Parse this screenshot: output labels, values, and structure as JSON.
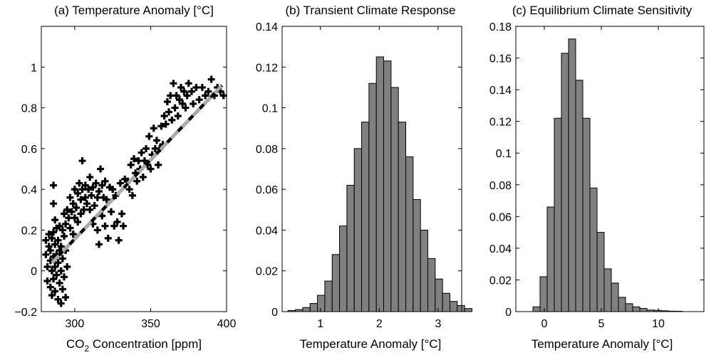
{
  "chart_data": [
    {
      "type": "scatter",
      "title": "(a) Temperature Anomaly [°C]",
      "xlabel_pre": "CO",
      "xlabel_sub": "2",
      "xlabel_post": " Concentration [ppm]",
      "xlim": [
        278,
        400
      ],
      "ylim": [
        -0.2,
        1.2
      ],
      "xticks": [
        300,
        350,
        400
      ],
      "yticks": [
        -0.2,
        0,
        0.2,
        0.4,
        0.6,
        0.8,
        1
      ],
      "ytick_labels": [
        "−0.2",
        "0",
        "0.2",
        "0.4",
        "0.6",
        "0.8",
        "1"
      ],
      "marker": "plus",
      "fit_line": {
        "x": [
          285,
          397
        ],
        "y": [
          0.04,
          0.91
        ],
        "colors": [
          "#000000",
          "#aaaaaa"
        ]
      },
      "points": [
        [
          281,
          0.15
        ],
        [
          281,
          0.08
        ],
        [
          282,
          0.02
        ],
        [
          282,
          -0.05
        ],
        [
          283,
          0.12
        ],
        [
          283,
          0.18
        ],
        [
          284,
          0.05
        ],
        [
          284,
          -0.08
        ],
        [
          284,
          0.1
        ],
        [
          285,
          0.16
        ],
        [
          285,
          -0.12
        ],
        [
          285,
          0.0
        ],
        [
          286,
          0.07
        ],
        [
          286,
          0.19
        ],
        [
          286,
          -0.04
        ],
        [
          287,
          0.13
        ],
        [
          287,
          0.02
        ],
        [
          287,
          -0.1
        ],
        [
          288,
          0.08
        ],
        [
          288,
          0.21
        ],
        [
          288,
          -0.02
        ],
        [
          289,
          0.04
        ],
        [
          289,
          -0.14
        ],
        [
          289,
          0.15
        ],
        [
          290,
          0.1
        ],
        [
          290,
          -0.06
        ],
        [
          290,
          0.22
        ],
        [
          291,
          0.0
        ],
        [
          291,
          -0.16
        ],
        [
          291,
          0.12
        ],
        [
          292,
          0.06
        ],
        [
          292,
          -0.09
        ],
        [
          293,
          0.17
        ],
        [
          293,
          -0.03
        ],
        [
          294,
          0.1
        ],
        [
          294,
          -0.13
        ],
        [
          295,
          0.02
        ],
        [
          286,
          0.42
        ],
        [
          286,
          0.33
        ],
        [
          287,
          0.25
        ],
        [
          292,
          0.2
        ],
        [
          293,
          0.28
        ],
        [
          294,
          0.23
        ],
        [
          295,
          0.3
        ],
        [
          296,
          0.26
        ],
        [
          297,
          0.36
        ],
        [
          297,
          0.21
        ],
        [
          298,
          0.29
        ],
        [
          299,
          0.33
        ],
        [
          299,
          0.18
        ],
        [
          300,
          0.4
        ],
        [
          300,
          0.26
        ],
        [
          301,
          0.31
        ],
        [
          302,
          0.38
        ],
        [
          302,
          0.24
        ],
        [
          303,
          0.43
        ],
        [
          304,
          0.35
        ],
        [
          304,
          0.28
        ],
        [
          305,
          0.4
        ],
        [
          305,
          0.54
        ],
        [
          306,
          0.3
        ],
        [
          307,
          0.42
        ],
        [
          307,
          0.36
        ],
        [
          308,
          0.33
        ],
        [
          309,
          0.4
        ],
        [
          310,
          0.3
        ],
        [
          310,
          0.46
        ],
        [
          311,
          0.37
        ],
        [
          312,
          0.41
        ],
        [
          312,
          0.23
        ],
        [
          313,
          0.32
        ],
        [
          314,
          0.43
        ],
        [
          315,
          0.36
        ],
        [
          315,
          0.2
        ],
        [
          316,
          0.39
        ],
        [
          316,
          0.13
        ],
        [
          317,
          0.5
        ],
        [
          318,
          0.42
        ],
        [
          318,
          0.27
        ],
        [
          319,
          0.36
        ],
        [
          320,
          0.44
        ],
        [
          320,
          0.22
        ],
        [
          321,
          0.35
        ],
        [
          322,
          0.16
        ],
        [
          323,
          0.41
        ],
        [
          324,
          0.29
        ],
        [
          325,
          0.4
        ],
        [
          326,
          0.22
        ],
        [
          327,
          0.37
        ],
        [
          328,
          0.24
        ],
        [
          329,
          0.15
        ],
        [
          330,
          0.43
        ],
        [
          331,
          0.28
        ],
        [
          332,
          0.22
        ],
        [
          333,
          0.45
        ],
        [
          335,
          0.44
        ],
        [
          336,
          0.4
        ],
        [
          337,
          0.52
        ],
        [
          338,
          0.37
        ],
        [
          339,
          0.55
        ],
        [
          340,
          0.48
        ],
        [
          341,
          0.44
        ],
        [
          342,
          0.54
        ],
        [
          343,
          0.5
        ],
        [
          344,
          0.58
        ],
        [
          345,
          0.46
        ],
        [
          346,
          0.54
        ],
        [
          347,
          0.6
        ],
        [
          348,
          0.52
        ],
        [
          349,
          0.66
        ],
        [
          350,
          0.5
        ],
        [
          351,
          0.57
        ],
        [
          352,
          0.7
        ],
        [
          353,
          0.6
        ],
        [
          354,
          0.64
        ],
        [
          355,
          0.52
        ],
        [
          356,
          0.6
        ],
        [
          357,
          0.71
        ],
        [
          358,
          0.62
        ],
        [
          359,
          0.76
        ],
        [
          360,
          0.72
        ],
        [
          361,
          0.83
        ],
        [
          362,
          0.78
        ],
        [
          363,
          0.86
        ],
        [
          364,
          0.74
        ],
        [
          365,
          0.92
        ],
        [
          366,
          0.8
        ],
        [
          367,
          0.86
        ],
        [
          368,
          0.76
        ],
        [
          369,
          0.84
        ],
        [
          370,
          0.9
        ],
        [
          371,
          0.82
        ],
        [
          372,
          0.88
        ],
        [
          373,
          0.8
        ],
        [
          374,
          0.86
        ],
        [
          375,
          0.92
        ],
        [
          377,
          0.88
        ],
        [
          378,
          0.82
        ],
        [
          380,
          0.9
        ],
        [
          382,
          0.84
        ],
        [
          384,
          0.9
        ],
        [
          386,
          0.86
        ],
        [
          388,
          0.88
        ],
        [
          390,
          0.94
        ],
        [
          392,
          0.86
        ],
        [
          394,
          0.9
        ],
        [
          396,
          0.88
        ],
        [
          398,
          0.86
        ]
      ]
    },
    {
      "type": "bar",
      "title": "(b) Transient Climate Response",
      "xlabel": "Temperature Anomaly [°C]",
      "xlim": [
        0.35,
        3.4
      ],
      "ylim": [
        0,
        0.14
      ],
      "xticks": [
        1,
        2,
        3
      ],
      "yticks": [
        0,
        0.02,
        0.04,
        0.06,
        0.08,
        0.1,
        0.12,
        0.14
      ],
      "ytick_labels": [
        "0",
        "0.02",
        "0.04",
        "0.06",
        "0.08",
        "0.1",
        "0.12",
        "0.14"
      ],
      "bin_start": 0.45,
      "bin_width": 0.125,
      "values": [
        0.0005,
        0.001,
        0.002,
        0.004,
        0.008,
        0.015,
        0.028,
        0.042,
        0.062,
        0.08,
        0.093,
        0.112,
        0.125,
        0.123,
        0.11,
        0.093,
        0.076,
        0.055,
        0.04,
        0.026,
        0.016,
        0.009,
        0.005,
        0.003,
        0.0015
      ]
    },
    {
      "type": "bar",
      "title": "(c) Equilibrium Climate Sensitivity",
      "xlabel": "Temperature Anomaly [°C]",
      "xlim": [
        -2.5,
        14
      ],
      "ylim": [
        0,
        0.18
      ],
      "xticks": [
        0,
        5,
        10
      ],
      "yticks": [
        0,
        0.02,
        0.04,
        0.06,
        0.08,
        0.1,
        0.12,
        0.14,
        0.16,
        0.18
      ],
      "ytick_labels": [
        "0",
        "0.02",
        "0.04",
        "0.06",
        "0.08",
        "0.1",
        "0.12",
        "0.14",
        "0.16",
        "0.18"
      ],
      "bin_start": -1,
      "bin_width": 0.625,
      "values": [
        0.003,
        0.022,
        0.066,
        0.122,
        0.163,
        0.172,
        0.146,
        0.122,
        0.078,
        0.05,
        0.027,
        0.018,
        0.009,
        0.005,
        0.003,
        0.002,
        0.001,
        0.0008,
        0.0005,
        0.0003,
        0.0002
      ]
    }
  ]
}
